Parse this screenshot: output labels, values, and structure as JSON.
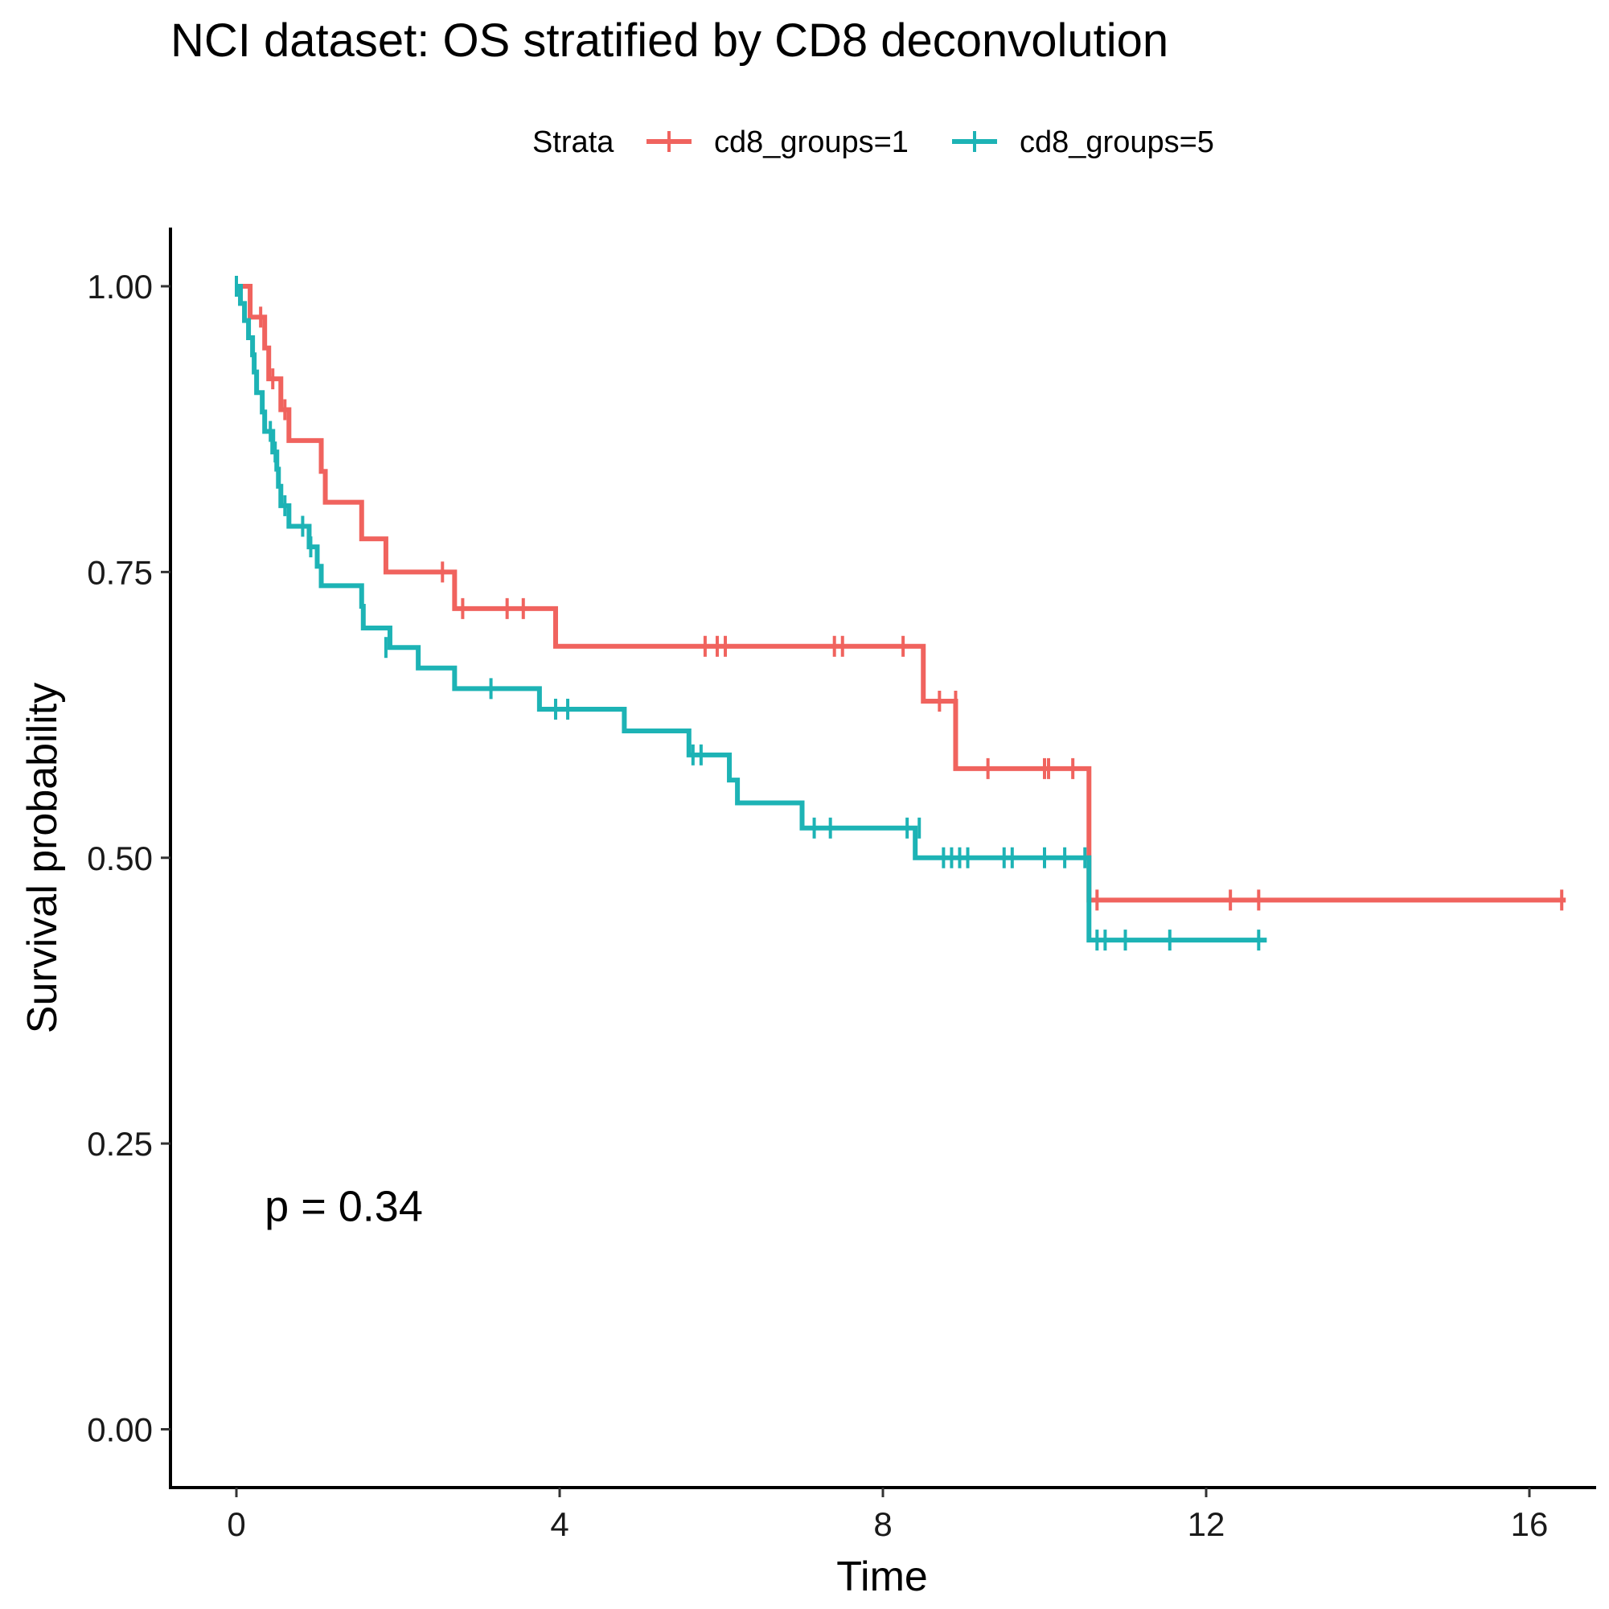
{
  "chart_data": {
    "type": "line",
    "subtype": "kaplan-meier step",
    "title": "NCI dataset: OS stratified by CD8 deconvolution",
    "xlabel": "Time",
    "ylabel": "Survival probability",
    "xlim": [
      -0.8,
      16.8
    ],
    "ylim": [
      -0.05,
      1.05
    ],
    "x_ticks": [
      0,
      4,
      8,
      12,
      16
    ],
    "x_tick_labels": [
      "0",
      "4",
      "8",
      "12",
      "16"
    ],
    "y_ticks": [
      0,
      0.25,
      0.5,
      0.75,
      1.0
    ],
    "y_tick_labels": [
      "0.00",
      "0.25",
      "0.50",
      "0.75",
      "1.00"
    ],
    "grid": false,
    "legend": {
      "title": "Strata",
      "position": "top"
    },
    "annotation": {
      "text": "p = 0.34",
      "x": 0.35,
      "y": 0.195
    },
    "series": [
      {
        "name": "cd8_groups=1",
        "color": "#F0635E",
        "steps": [
          [
            0,
            1.0
          ],
          [
            0.17,
            0.973
          ],
          [
            0.35,
            0.946
          ],
          [
            0.4,
            0.919
          ],
          [
            0.55,
            0.892
          ],
          [
            0.65,
            0.865
          ],
          [
            1.05,
            0.838
          ],
          [
            1.1,
            0.811
          ],
          [
            1.55,
            0.779
          ],
          [
            1.85,
            0.75
          ],
          [
            2.7,
            0.718
          ],
          [
            3.95,
            0.685
          ],
          [
            8.5,
            0.637
          ],
          [
            8.9,
            0.578
          ],
          [
            10.55,
            0.463
          ]
        ],
        "end": 16.45,
        "censored": [
          [
            0.3,
            0.973
          ],
          [
            0.45,
            0.919
          ],
          [
            0.6,
            0.892
          ],
          [
            2.55,
            0.75
          ],
          [
            2.8,
            0.718
          ],
          [
            3.35,
            0.718
          ],
          [
            3.55,
            0.718
          ],
          [
            5.8,
            0.685
          ],
          [
            5.95,
            0.685
          ],
          [
            6.05,
            0.685
          ],
          [
            7.4,
            0.685
          ],
          [
            7.5,
            0.685
          ],
          [
            8.25,
            0.685
          ],
          [
            8.7,
            0.637
          ],
          [
            8.9,
            0.637
          ],
          [
            9.3,
            0.578
          ],
          [
            10.0,
            0.578
          ],
          [
            10.05,
            0.578
          ],
          [
            10.35,
            0.578
          ],
          [
            10.65,
            0.463
          ],
          [
            12.3,
            0.463
          ],
          [
            12.65,
            0.463
          ],
          [
            16.4,
            0.463
          ]
        ]
      },
      {
        "name": "cd8_groups=5",
        "color": "#1DB3B5",
        "steps": [
          [
            0,
            1.0
          ],
          [
            0.05,
            0.985
          ],
          [
            0.1,
            0.97
          ],
          [
            0.15,
            0.955
          ],
          [
            0.2,
            0.94
          ],
          [
            0.22,
            0.925
          ],
          [
            0.25,
            0.907
          ],
          [
            0.32,
            0.89
          ],
          [
            0.35,
            0.873
          ],
          [
            0.45,
            0.855
          ],
          [
            0.5,
            0.84
          ],
          [
            0.52,
            0.825
          ],
          [
            0.55,
            0.808
          ],
          [
            0.65,
            0.79
          ],
          [
            0.9,
            0.772
          ],
          [
            1.0,
            0.755
          ],
          [
            1.05,
            0.738
          ],
          [
            1.55,
            0.72
          ],
          [
            1.57,
            0.701
          ],
          [
            1.9,
            0.684
          ],
          [
            2.25,
            0.666
          ],
          [
            2.7,
            0.648
          ],
          [
            3.75,
            0.63
          ],
          [
            4.8,
            0.611
          ],
          [
            5.6,
            0.59
          ],
          [
            6.1,
            0.568
          ],
          [
            6.2,
            0.548
          ],
          [
            7.0,
            0.526
          ],
          [
            8.4,
            0.5
          ],
          [
            10.55,
            0.428
          ]
        ],
        "end": 12.75,
        "censored": [
          [
            0.0,
            1.0
          ],
          [
            0.42,
            0.873
          ],
          [
            0.48,
            0.855
          ],
          [
            0.6,
            0.808
          ],
          [
            0.82,
            0.79
          ],
          [
            0.92,
            0.772
          ],
          [
            1.85,
            0.684
          ],
          [
            3.15,
            0.648
          ],
          [
            3.95,
            0.63
          ],
          [
            4.1,
            0.63
          ],
          [
            5.65,
            0.59
          ],
          [
            5.75,
            0.59
          ],
          [
            7.15,
            0.526
          ],
          [
            7.35,
            0.526
          ],
          [
            8.3,
            0.526
          ],
          [
            8.45,
            0.526
          ],
          [
            8.75,
            0.5
          ],
          [
            8.85,
            0.5
          ],
          [
            8.95,
            0.5
          ],
          [
            9.05,
            0.5
          ],
          [
            9.5,
            0.5
          ],
          [
            9.6,
            0.5
          ],
          [
            10.0,
            0.5
          ],
          [
            10.25,
            0.5
          ],
          [
            10.5,
            0.5
          ],
          [
            10.65,
            0.428
          ],
          [
            10.75,
            0.428
          ],
          [
            11.0,
            0.428
          ],
          [
            11.55,
            0.428
          ],
          [
            12.65,
            0.428
          ]
        ]
      }
    ]
  }
}
